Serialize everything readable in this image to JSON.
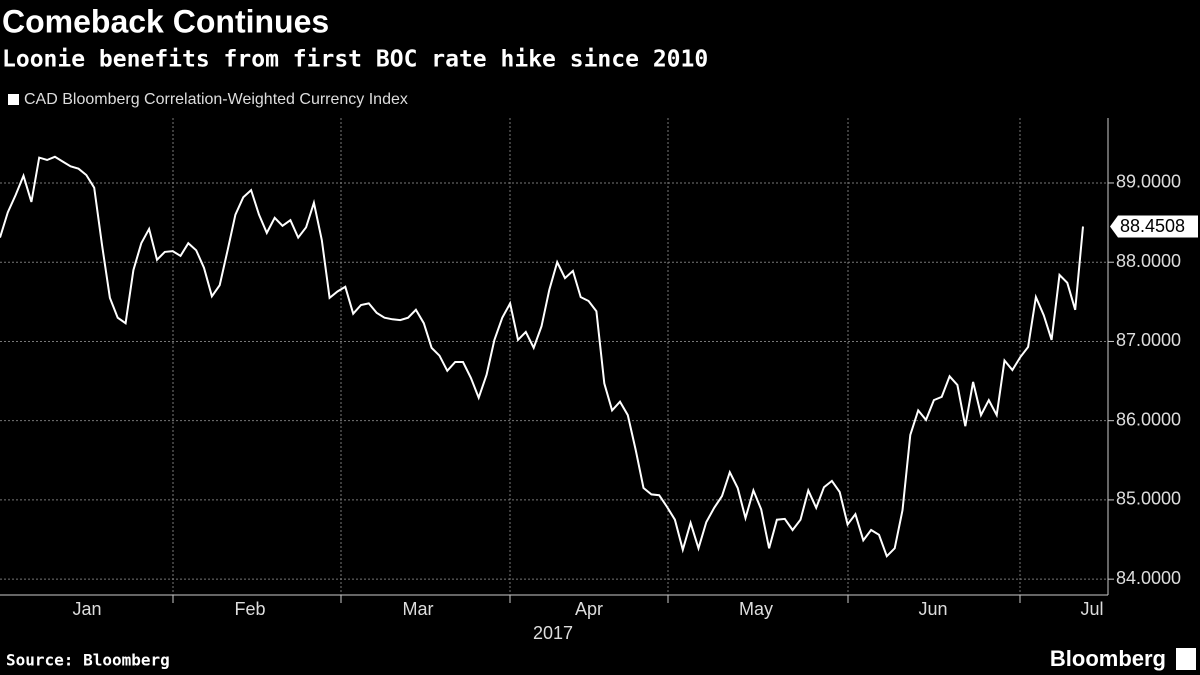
{
  "chart_data": {
    "type": "line",
    "title": "Comeback Continues",
    "subtitle": "Loonie benefits from first BOC rate hike since 2010",
    "x_tick_labels": [
      "Jan",
      "Feb",
      "Mar",
      "Apr",
      "May",
      "Jun",
      "Jul"
    ],
    "x_label": "2017",
    "source": "Source: Bloomberg",
    "brand": "Bloomberg",
    "grid": true,
    "ylim": [
      83.8,
      89.82
    ],
    "yticks": [
      {
        "value": 84,
        "label": "84.0000"
      },
      {
        "value": 85,
        "label": "85.0000"
      },
      {
        "value": 86,
        "label": "86.0000"
      },
      {
        "value": 87,
        "label": "87.0000"
      },
      {
        "value": 88,
        "label": "88.0000"
      },
      {
        "value": 89,
        "label": "89.0000"
      }
    ],
    "series": [
      {
        "name": "CAD Bloomberg Correlation-Weighted Currency Index",
        "color": "#ffffff",
        "values": [
          88.31,
          88.63,
          88.85,
          89.09,
          88.76,
          89.32,
          89.29,
          89.33,
          89.27,
          89.21,
          89.18,
          89.1,
          88.94,
          88.22,
          87.55,
          87.3,
          87.23,
          87.9,
          88.24,
          88.42,
          88.03,
          88.13,
          88.14,
          88.08,
          88.24,
          88.15,
          87.93,
          87.57,
          87.71,
          88.15,
          88.6,
          88.82,
          88.91,
          88.6,
          88.37,
          88.56,
          88.46,
          88.53,
          88.31,
          88.44,
          88.75,
          88.28,
          87.55,
          87.63,
          87.69,
          87.35,
          87.46,
          87.48,
          87.36,
          87.3,
          87.28,
          87.27,
          87.3,
          87.4,
          87.23,
          86.92,
          86.82,
          86.63,
          86.74,
          86.74,
          86.54,
          86.29,
          86.58,
          87.02,
          87.3,
          87.48,
          87.02,
          87.12,
          86.92,
          87.19,
          87.65,
          88.0,
          87.8,
          87.89,
          87.56,
          87.51,
          87.38,
          86.47,
          86.13,
          86.24,
          86.07,
          85.63,
          85.15,
          85.07,
          85.06,
          84.91,
          84.75,
          84.37,
          84.71,
          84.39,
          84.72,
          84.9,
          85.05,
          85.35,
          85.15,
          84.77,
          85.12,
          84.88,
          84.39,
          84.75,
          84.76,
          84.62,
          84.75,
          85.12,
          84.9,
          85.16,
          85.24,
          85.1,
          84.69,
          84.82,
          84.49,
          84.62,
          84.56,
          84.29,
          84.39,
          84.87,
          85.82,
          86.13,
          86.01,
          86.26,
          86.3,
          86.56,
          86.45,
          85.93,
          86.49,
          86.07,
          86.26,
          86.07,
          86.76,
          86.64,
          86.8,
          86.93,
          87.56,
          87.33,
          87.02,
          87.84,
          87.74,
          87.4,
          88.4508
        ]
      }
    ]
  }
}
